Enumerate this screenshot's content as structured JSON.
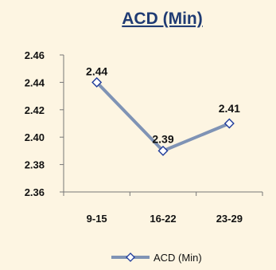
{
  "chart_data": {
    "type": "line",
    "title": "ACD (Min)",
    "xlabel": "",
    "ylabel": "",
    "categories": [
      "9-15",
      "16-22",
      "23-29"
    ],
    "series": [
      {
        "name": "ACD (Min)",
        "values": [
          2.44,
          2.39,
          2.41
        ],
        "color": "#7f93b5"
      }
    ],
    "data_labels": [
      "2.44",
      "2.39",
      "2.41"
    ],
    "ylim": [
      2.36,
      2.46
    ],
    "yticks": [
      2.36,
      2.38,
      2.4,
      2.42,
      2.44,
      2.46
    ],
    "ytick_labels": [
      "2.36",
      "2.38",
      "2.40",
      "2.42",
      "2.44",
      "2.46"
    ],
    "grid": false,
    "legend": "bottom",
    "marker": "diamond-open",
    "title_color": "#1f3b73",
    "background_color": "#fdf5e2"
  }
}
